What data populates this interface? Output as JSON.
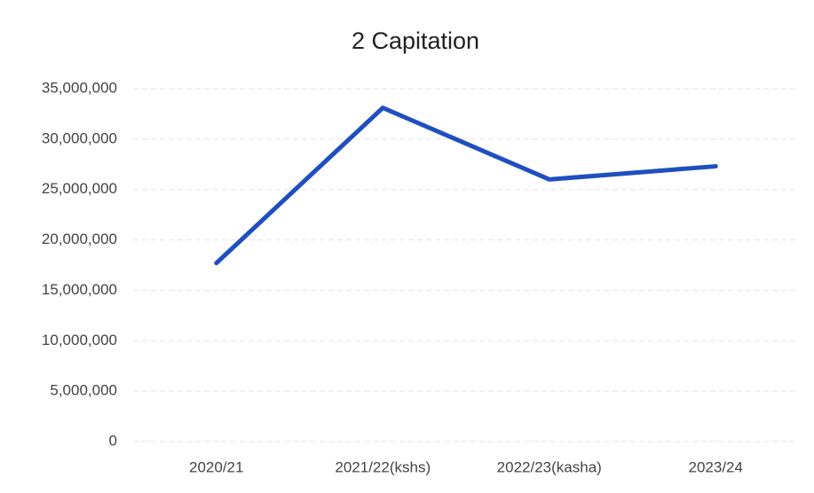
{
  "chart_data": {
    "type": "line",
    "title": "2 Capitation",
    "categories": [
      "2020/21",
      "2021/22(kshs)",
      "2022/23(kasha)",
      "2023/24"
    ],
    "series": [
      {
        "name": "2 Capitation",
        "color": "#1f4fbf",
        "values": [
          17700000,
          33100000,
          26000000,
          27300000
        ]
      }
    ],
    "ylim": [
      0,
      35000000
    ],
    "yticks": [
      0,
      {
        "value": 5000000,
        "label": "5,000,000"
      },
      {
        "value": 10000000,
        "label": "10,000,000"
      },
      {
        "value": 15000000,
        "label": "15,000,000"
      },
      {
        "value": 20000000,
        "label": "20,000,000"
      },
      {
        "value": 25000000,
        "label": "25,000,000"
      },
      {
        "value": 30000000,
        "label": "30,000,000"
      },
      {
        "value": 35000000,
        "label": "35,000,000"
      }
    ],
    "grid": true
  }
}
